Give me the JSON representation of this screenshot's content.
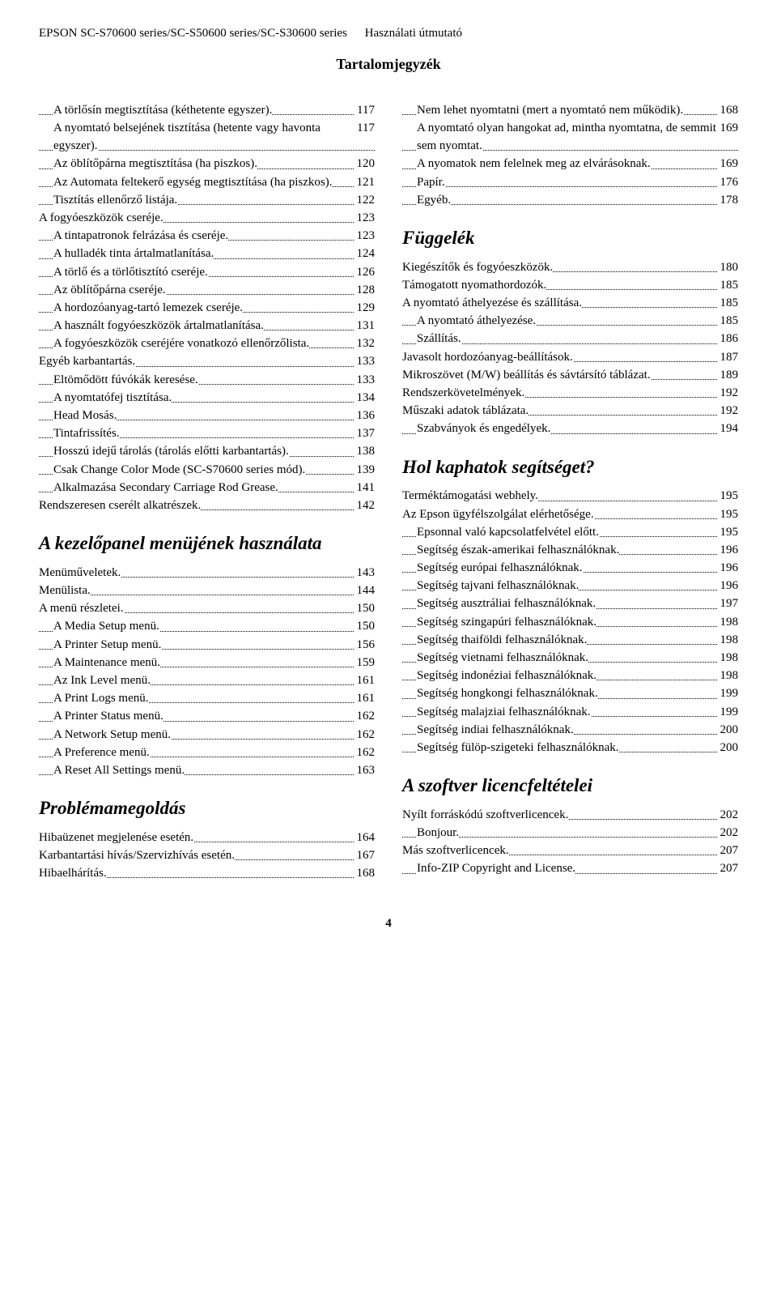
{
  "header": {
    "product": "EPSON SC-S70600 series/SC-S50600 series/SC-S30600 series",
    "doc_type": "Használati útmutató",
    "toc_title": "Tartalomjegyzék"
  },
  "page_number": "4",
  "left_col": [
    {
      "indent": 1,
      "label": "A törlősín megtisztítása (kéthetente egyszer)",
      "wrap": true,
      "page": "117"
    },
    {
      "indent": 1,
      "label": "A nyomtató belsejének tisztítása (hetente vagy havonta egyszer)",
      "wrap": true,
      "page": "117"
    },
    {
      "indent": 1,
      "label": "Az öblítőpárna megtisztítása (ha piszkos)",
      "page": "120"
    },
    {
      "indent": 1,
      "label": "Az Automata feltekerő egység megtisztítása (ha piszkos)",
      "wrap": true,
      "page": "121"
    },
    {
      "indent": 1,
      "label": "Tisztítás ellenőrző listája",
      "page": "122"
    },
    {
      "indent": 0,
      "label": "A fogyóeszközök cseréje",
      "page": "123"
    },
    {
      "indent": 1,
      "label": "A tintapatronok felrázása és cseréje",
      "page": "123"
    },
    {
      "indent": 1,
      "label": "A hulladék tinta ártalmatlanítása",
      "page": "124"
    },
    {
      "indent": 1,
      "label": "A törlő és a törlőtisztító cseréje",
      "page": "126"
    },
    {
      "indent": 1,
      "label": "Az öblítőpárna cseréje",
      "page": "128"
    },
    {
      "indent": 1,
      "label": "A hordozóanyag-tartó lemezek cseréje",
      "page": "129"
    },
    {
      "indent": 1,
      "label": "A használt fogyóeszközök ártalmatlanítása",
      "page": "131"
    },
    {
      "indent": 1,
      "label": "A fogyóeszközök cseréjére vonatkozó ellenőrzőlista",
      "wrap": true,
      "page": "132"
    },
    {
      "indent": 0,
      "label": "Egyéb karbantartás",
      "page": "133"
    },
    {
      "indent": 1,
      "label": "Eltömődött fúvókák keresése",
      "page": "133"
    },
    {
      "indent": 1,
      "label": "A nyomtatófej tisztítása",
      "page": "134"
    },
    {
      "indent": 1,
      "label": "Head Mosás",
      "page": "136"
    },
    {
      "indent": 1,
      "label": "Tintafrissítés",
      "page": "137"
    },
    {
      "indent": 1,
      "label": "Hosszú idejű tárolás (tárolás előtti karbantartás)",
      "wrap": true,
      "page": "138"
    },
    {
      "indent": 1,
      "label": "Csak Change Color Mode (SC-S70600 series mód)",
      "wrap": true,
      "page": "139"
    },
    {
      "indent": 1,
      "label": "Alkalmazása Secondary Carriage Rod Grease",
      "wrap": true,
      "page": "141"
    },
    {
      "indent": 0,
      "label": "Rendszeresen cserélt alkatrészek",
      "page": "142"
    },
    {
      "section": "A kezelőpanel menüjének használata"
    },
    {
      "indent": 0,
      "label": "Menüműveletek",
      "page": "143"
    },
    {
      "indent": 0,
      "label": "Menülista",
      "page": "144"
    },
    {
      "indent": 0,
      "label": "A menü részletei",
      "page": "150"
    },
    {
      "indent": 1,
      "label": "A Media Setup menü",
      "page": "150"
    },
    {
      "indent": 1,
      "label": "A Printer Setup menü",
      "page": "156"
    },
    {
      "indent": 1,
      "label": "A Maintenance menü",
      "page": "159"
    },
    {
      "indent": 1,
      "label": "Az Ink Level menü",
      "page": "161"
    },
    {
      "indent": 1,
      "label": "A Print Logs menü",
      "page": "161"
    },
    {
      "indent": 1,
      "label": "A Printer Status menü",
      "page": "162"
    },
    {
      "indent": 1,
      "label": "A Network Setup menü",
      "page": "162"
    },
    {
      "indent": 1,
      "label": "A Preference menü",
      "page": "162"
    },
    {
      "indent": 1,
      "label": "A Reset All Settings menü",
      "page": "163"
    },
    {
      "section": "Problémamegoldás"
    },
    {
      "indent": 0,
      "label": "Hibaüzenet megjelenése esetén",
      "page": "164"
    },
    {
      "indent": 0,
      "label": "Karbantartási hívás/Szervizhívás esetén",
      "page": "167"
    },
    {
      "indent": 0,
      "label": "Hibaelhárítás",
      "page": "168"
    }
  ],
  "right_col": [
    {
      "indent": 1,
      "label": "Nem lehet nyomtatni (mert a nyomtató nem működik)",
      "wrap": true,
      "page": "168"
    },
    {
      "indent": 1,
      "label": "A nyomtató olyan hangokat ad, mintha nyomtatna, de semmit sem nyomtat",
      "wrap": true,
      "page": "169"
    },
    {
      "indent": 1,
      "label": "A nyomatok nem felelnek meg az elvárásoknak",
      "wrap": true,
      "page": "169"
    },
    {
      "indent": 1,
      "label": "Papír",
      "page": "176"
    },
    {
      "indent": 1,
      "label": "Egyéb",
      "page": "178"
    },
    {
      "section": "Függelék"
    },
    {
      "indent": 0,
      "label": "Kiegészítők és fogyóeszközök",
      "page": "180"
    },
    {
      "indent": 0,
      "label": "Támogatott nyomathordozók",
      "page": "185"
    },
    {
      "indent": 0,
      "label": "A nyomtató áthelyezése és szállítása",
      "page": "185"
    },
    {
      "indent": 1,
      "label": "A nyomtató áthelyezése",
      "page": "185"
    },
    {
      "indent": 1,
      "label": "Szállítás",
      "page": "186"
    },
    {
      "indent": 0,
      "label": "Javasolt hordozóanyag-beállítások",
      "page": "187"
    },
    {
      "indent": 0,
      "label": "Mikroszövet (M/W) beállítás és sávtársító táblázat",
      "wrap": true,
      "page": "189"
    },
    {
      "indent": 0,
      "label": "Rendszerkövetelmények",
      "page": "192"
    },
    {
      "indent": 0,
      "label": "Műszaki adatok táblázata",
      "page": "192"
    },
    {
      "indent": 1,
      "label": "Szabványok és engedélyek",
      "page": "194"
    },
    {
      "section": "Hol kaphatok segítséget?"
    },
    {
      "indent": 0,
      "label": "Terméktámogatási webhely",
      "page": "195"
    },
    {
      "indent": 0,
      "label": "Az Epson ügyfélszolgálat elérhetősége",
      "page": "195"
    },
    {
      "indent": 1,
      "label": "Epsonnal való kapcsolatfelvétel előtt",
      "page": "195"
    },
    {
      "indent": 1,
      "label": "Segítség észak-amerikai felhasználóknak",
      "page": "196"
    },
    {
      "indent": 1,
      "label": "Segítség európai felhasználóknak",
      "page": "196"
    },
    {
      "indent": 1,
      "label": "Segítség tajvani felhasználóknak",
      "page": "196"
    },
    {
      "indent": 1,
      "label": "Segítség ausztráliai felhasználóknak",
      "page": "197"
    },
    {
      "indent": 1,
      "label": "Segítség szingapúri felhasználóknak",
      "page": "198"
    },
    {
      "indent": 1,
      "label": "Segítség thaiföldi felhasználóknak",
      "page": "198"
    },
    {
      "indent": 1,
      "label": "Segítség vietnami felhasználóknak",
      "page": "198"
    },
    {
      "indent": 1,
      "label": "Segítség indonéziai felhasználóknak",
      "page": "198"
    },
    {
      "indent": 1,
      "label": "Segítség hongkongi felhasználóknak",
      "page": "199"
    },
    {
      "indent": 1,
      "label": "Segítség malajziai felhasználóknak",
      "page": "199"
    },
    {
      "indent": 1,
      "label": "Segítség indiai felhasználóknak",
      "page": "200"
    },
    {
      "indent": 1,
      "label": "Segítség fülöp-szigeteki felhasználóknak",
      "page": "200"
    },
    {
      "section": "A szoftver licencfeltételei"
    },
    {
      "indent": 0,
      "label": "Nyílt forráskódú szoftverlicencek",
      "page": "202"
    },
    {
      "indent": 1,
      "label": "Bonjour",
      "page": "202"
    },
    {
      "indent": 0,
      "label": "Más szoftverlicencek",
      "page": "207"
    },
    {
      "indent": 1,
      "label": "Info-ZIP Copyright and License",
      "page": "207"
    }
  ]
}
